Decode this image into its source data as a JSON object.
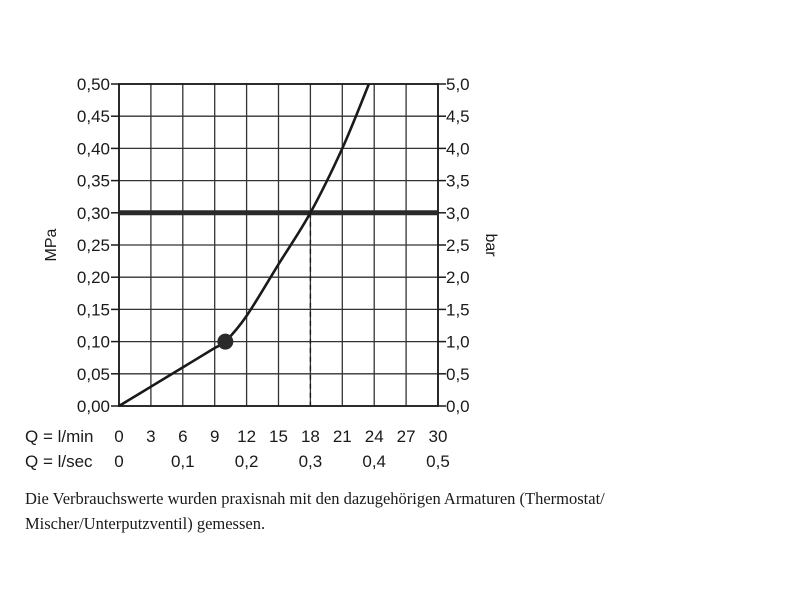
{
  "chart_data": {
    "type": "line",
    "left_axis": {
      "title": "MPa",
      "ticks": [
        "0,00",
        "0,05",
        "0,10",
        "0,15",
        "0,20",
        "0,25",
        "0,30",
        "0,35",
        "0,40",
        "0,45",
        "0,50"
      ],
      "range": [
        0,
        0.5
      ]
    },
    "right_axis": {
      "title": "bar",
      "ticks": [
        "0,0",
        "0,5",
        "1,0",
        "1,5",
        "2,0",
        "2,5",
        "3,0",
        "3,5",
        "4,0",
        "4,5",
        "5,0"
      ],
      "range": [
        0,
        5
      ]
    },
    "x_axis_lmin": {
      "label": "Q = l/min",
      "ticks": [
        "0",
        "3",
        "6",
        "9",
        "12",
        "15",
        "18",
        "21",
        "24",
        "27",
        "30"
      ],
      "range": [
        0,
        30
      ]
    },
    "x_axis_lsec": {
      "label": "Q = l/sec",
      "ticks": [
        "0",
        "0,1",
        "0,2",
        "0,3",
        "0,4",
        "0,5"
      ],
      "range": [
        0,
        0.5
      ]
    },
    "grid": true,
    "series": [
      {
        "x": [
          0,
          3,
          6,
          9,
          10,
          12,
          15,
          18,
          21,
          23.5
        ],
        "y": [
          0,
          0.03,
          0.06,
          0.09,
          0.1,
          0.14,
          0.22,
          0.3,
          0.4,
          0.5
        ]
      }
    ],
    "marker_point": {
      "x": 10,
      "y": 0.1
    },
    "reference_line": {
      "y": 0.3
    },
    "drop_line": {
      "x": 18,
      "y": 0.3
    }
  },
  "caption": "Die Verbrauchswerte wurden praxisnah mit den dazugehörigen Armaturen (Thermostat/ Mischer/Unterputzventil) gemessen.",
  "colors": {
    "ink": "#1a1a1a",
    "grid": "#333333",
    "reference_line": "#2a2a2a"
  }
}
